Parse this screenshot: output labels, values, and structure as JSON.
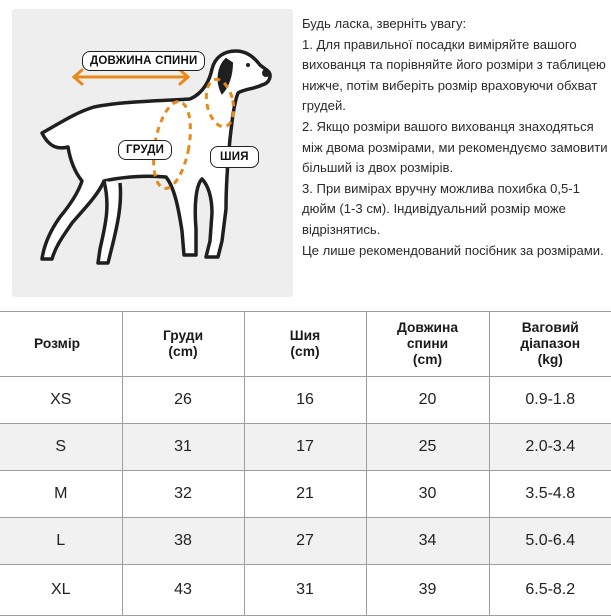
{
  "diagram": {
    "labels": {
      "back_length": "ДОВЖИНА СПИНИ",
      "chest": "ГРУДИ",
      "neck": "ШИЯ"
    },
    "colors": {
      "accent": "#e88a1a",
      "dog": "#1f1f1f",
      "panel": "#eeeeee"
    }
  },
  "notes": {
    "heading": "Будь ласка, зверніть увагу:",
    "point1": "1. Для правильної посадки виміряйте вашого вихованця та порівняйте його розміри з таблицею нижче, потім виберіть розмір враховуючи обхват грудей.",
    "point2": "2. Якщо розміри вашого вихованця знаходяться між двома розмірами, ми рекомендуємо замовити більший із двох розмірів.",
    "point3": "3. При вимірах вручну можлива похибка 0,5-1 дюйм (1-3 см). Індивідуальний розмір може відрізнятись.",
    "footer": "Це лише рекомендований посібник за розмірами."
  },
  "table": {
    "headers": {
      "size": "Розмір",
      "chest_l1": "Груди",
      "chest_l2": "(cm)",
      "neck_l1": "Шия",
      "neck_l2": "(cm)",
      "back_l1": "Довжина",
      "back_l2": "спини",
      "back_l3": "(cm)",
      "weight_l1": "Ваговий",
      "weight_l2": "діапазон",
      "weight_l3": "(kg)"
    },
    "rows": [
      {
        "size": "XS",
        "chest": "26",
        "neck": "16",
        "back": "20",
        "weight": "0.9-1.8"
      },
      {
        "size": "S",
        "chest": "31",
        "neck": "17",
        "back": "25",
        "weight": "2.0-3.4"
      },
      {
        "size": "M",
        "chest": "32",
        "neck": "21",
        "back": "30",
        "weight": "3.5-4.8"
      },
      {
        "size": "L",
        "chest": "38",
        "neck": "27",
        "back": "34",
        "weight": "5.0-6.4"
      },
      {
        "size": "XL",
        "chest": "43",
        "neck": "31",
        "back": "39",
        "weight": "6.5-8.2"
      }
    ]
  }
}
